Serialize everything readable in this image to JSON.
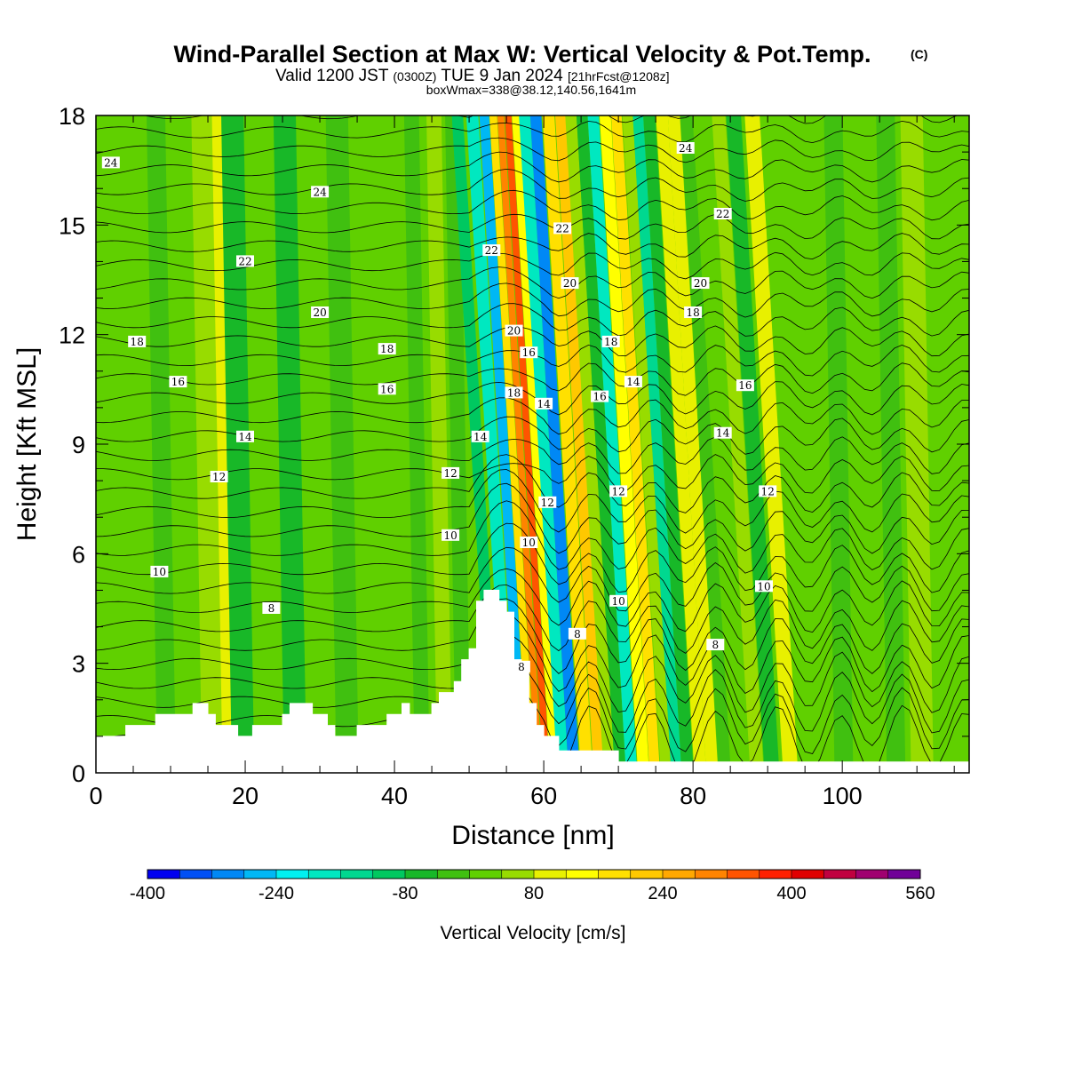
{
  "title": {
    "main": "Wind-Parallel Section at Max W: Vertical Velocity & Pot.Temp.",
    "main_tag": "(C)",
    "valid_pre": "Valid 1200 JST",
    "valid_utc": "(0300Z)",
    "valid_date": "TUE 9 Jan 2024",
    "valid_fcst": "[21hrFcst@1208z]",
    "box_info": "boxWmax=338@38.12,140.56,1641m"
  },
  "colorbar": {
    "label": "Vertical Velocity [cm/s]",
    "tick_labels": [
      "-400",
      "-240",
      "-80",
      "80",
      "240",
      "400",
      "560"
    ],
    "levels": [
      -400,
      -360,
      -320,
      -280,
      -240,
      -200,
      -160,
      -120,
      -80,
      -40,
      0,
      40,
      80,
      120,
      160,
      200,
      240,
      280,
      320,
      360,
      400,
      440,
      480,
      520,
      560
    ],
    "colors": [
      "#0000f0",
      "#0050f5",
      "#0088f5",
      "#00b8f5",
      "#00f0f0",
      "#00e8c0",
      "#00d890",
      "#00c860",
      "#18b828",
      "#40c010",
      "#60d000",
      "#98dc00",
      "#e8f000",
      "#ffff00",
      "#ffe000",
      "#ffc800",
      "#ffa800",
      "#ff8400",
      "#ff5400",
      "#ff2000",
      "#e00000",
      "#c00040",
      "#a00070",
      "#700098"
    ]
  },
  "chart_data": {
    "type": "heatmap",
    "title": "Wind-Parallel Section at Max W: Vertical Velocity & Pot.Temp.",
    "xlabel": "Distance [nm]",
    "ylabel": "Height [Kft MSL]",
    "xlim": [
      0,
      117
    ],
    "ylim": [
      0,
      18
    ],
    "x_ticks": [
      0,
      20,
      40,
      60,
      80,
      100
    ],
    "y_ticks": [
      0,
      3,
      6,
      9,
      12,
      15,
      18
    ],
    "field": "Vertical Velocity [cm/s]",
    "contour_field": "Potential temperature (contour labels)",
    "contour_levels": [
      8,
      10,
      12,
      14,
      16,
      18,
      20,
      22,
      24
    ],
    "max_w": 338,
    "terrain": [
      [
        0,
        1.0
      ],
      [
        4,
        1.0
      ],
      [
        4,
        1.3
      ],
      [
        8,
        1.3
      ],
      [
        8,
        1.6
      ],
      [
        13,
        1.6
      ],
      [
        13,
        1.9
      ],
      [
        15,
        1.9
      ],
      [
        15,
        1.6
      ],
      [
        16,
        1.6
      ],
      [
        16,
        1.3
      ],
      [
        19,
        1.3
      ],
      [
        19,
        1.0
      ],
      [
        21,
        1.0
      ],
      [
        21,
        1.3
      ],
      [
        25,
        1.3
      ],
      [
        25,
        1.6
      ],
      [
        26,
        1.6
      ],
      [
        26,
        1.9
      ],
      [
        29,
        1.9
      ],
      [
        29,
        1.6
      ],
      [
        31,
        1.6
      ],
      [
        31,
        1.3
      ],
      [
        32,
        1.3
      ],
      [
        32,
        1.0
      ],
      [
        35,
        1.0
      ],
      [
        35,
        1.3
      ],
      [
        39,
        1.3
      ],
      [
        39,
        1.6
      ],
      [
        41,
        1.6
      ],
      [
        41,
        1.9
      ],
      [
        42,
        1.9
      ],
      [
        42,
        1.6
      ],
      [
        45,
        1.6
      ],
      [
        45,
        1.9
      ],
      [
        46,
        1.9
      ],
      [
        46,
        2.2
      ],
      [
        48,
        2.2
      ],
      [
        48,
        2.5
      ],
      [
        49,
        2.5
      ],
      [
        49,
        3.1
      ],
      [
        50,
        3.1
      ],
      [
        50,
        3.4
      ],
      [
        51,
        3.4
      ],
      [
        51,
        4.7
      ],
      [
        52,
        4.7
      ],
      [
        52,
        5.0
      ],
      [
        54,
        5.0
      ],
      [
        54,
        4.7
      ],
      [
        55,
        4.7
      ],
      [
        55,
        4.4
      ],
      [
        56,
        4.4
      ],
      [
        56,
        3.1
      ],
      [
        57,
        3.1
      ],
      [
        57,
        2.8
      ],
      [
        58,
        2.8
      ],
      [
        58,
        1.9
      ],
      [
        59,
        1.9
      ],
      [
        59,
        1.3
      ],
      [
        60,
        1.3
      ],
      [
        60,
        1.0
      ],
      [
        62,
        1.0
      ],
      [
        62,
        0.6
      ],
      [
        70,
        0.6
      ],
      [
        70,
        0.3
      ],
      [
        117,
        0.3
      ]
    ],
    "contour_labels": [
      {
        "text": "24",
        "x": 2,
        "y": 16.7
      },
      {
        "text": "24",
        "x": 30,
        "y": 15.9
      },
      {
        "text": "24",
        "x": 79,
        "y": 17.1
      },
      {
        "text": "22",
        "x": 20,
        "y": 14.0
      },
      {
        "text": "22",
        "x": 53,
        "y": 14.3
      },
      {
        "text": "22",
        "x": 62.5,
        "y": 14.9
      },
      {
        "text": "22",
        "x": 84,
        "y": 15.3
      },
      {
        "text": "20",
        "x": 30,
        "y": 12.6
      },
      {
        "text": "20",
        "x": 56,
        "y": 12.1
      },
      {
        "text": "20",
        "x": 63.5,
        "y": 13.4
      },
      {
        "text": "20",
        "x": 81,
        "y": 13.4
      },
      {
        "text": "18",
        "x": 5.5,
        "y": 11.8
      },
      {
        "text": "18",
        "x": 39,
        "y": 11.6
      },
      {
        "text": "18",
        "x": 56,
        "y": 10.4
      },
      {
        "text": "18",
        "x": 69,
        "y": 11.8
      },
      {
        "text": "18",
        "x": 80,
        "y": 12.6
      },
      {
        "text": "16",
        "x": 11,
        "y": 10.7
      },
      {
        "text": "16",
        "x": 39,
        "y": 10.5
      },
      {
        "text": "16",
        "x": 58,
        "y": 11.5
      },
      {
        "text": "16",
        "x": 67.5,
        "y": 10.3
      },
      {
        "text": "16",
        "x": 87,
        "y": 10.6
      },
      {
        "text": "14",
        "x": 20,
        "y": 9.2
      },
      {
        "text": "14",
        "x": 51.5,
        "y": 9.2
      },
      {
        "text": "14",
        "x": 60,
        "y": 10.1
      },
      {
        "text": "14",
        "x": 72,
        "y": 10.7
      },
      {
        "text": "14",
        "x": 84,
        "y": 9.3
      },
      {
        "text": "12",
        "x": 16.5,
        "y": 8.1
      },
      {
        "text": "12",
        "x": 47.5,
        "y": 8.2
      },
      {
        "text": "12",
        "x": 60.5,
        "y": 7.4
      },
      {
        "text": "12",
        "x": 70,
        "y": 7.7
      },
      {
        "text": "12",
        "x": 90,
        "y": 7.7
      },
      {
        "text": "10",
        "x": 8.5,
        "y": 5.5
      },
      {
        "text": "10",
        "x": 47.5,
        "y": 6.5
      },
      {
        "text": "10",
        "x": 58,
        "y": 6.3
      },
      {
        "text": "10",
        "x": 70,
        "y": 4.7
      },
      {
        "text": "10",
        "x": 89.5,
        "y": 5.1
      },
      {
        "text": "8",
        "x": 23.5,
        "y": 4.5
      },
      {
        "text": "8",
        "x": 57,
        "y": 2.9
      },
      {
        "text": "8",
        "x": 64.5,
        "y": 3.8
      },
      {
        "text": "8",
        "x": 83,
        "y": 3.5
      }
    ]
  }
}
